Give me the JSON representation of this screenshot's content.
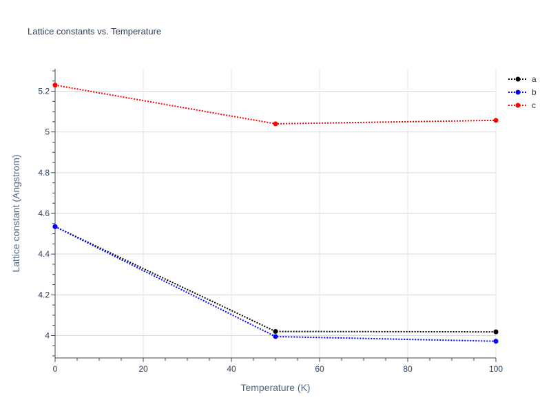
{
  "chart_data": {
    "type": "line",
    "title": "Lattice constants vs. Temperature",
    "xlabel": "Temperature (K)",
    "ylabel": "Lattice constant (Angstrom)",
    "xlim": [
      0,
      100
    ],
    "ylim": [
      3.89,
      5.31
    ],
    "x_ticks": [
      0,
      20,
      40,
      60,
      80,
      100
    ],
    "x_tick_labels": [
      "0",
      "20",
      "40",
      "60",
      "80",
      "100"
    ],
    "y_ticks": [
      4.0,
      4.2,
      4.4,
      4.6,
      4.8,
      5.0,
      5.2
    ],
    "y_tick_labels": [
      "4",
      "4.2",
      "4.4",
      "4.6",
      "4.8",
      "5",
      "5.2"
    ],
    "grid": true,
    "legend_position": "top-right",
    "line_style": "dotted with markers",
    "x": [
      0,
      50,
      100
    ],
    "series": [
      {
        "name": "a",
        "color": "#000000",
        "values": [
          4.535,
          4.02,
          4.018
        ]
      },
      {
        "name": "b",
        "color": "#0000ff",
        "values": [
          4.535,
          3.995,
          3.972
        ]
      },
      {
        "name": "c",
        "color": "#ff0000",
        "values": [
          5.23,
          5.04,
          5.057
        ]
      }
    ]
  }
}
